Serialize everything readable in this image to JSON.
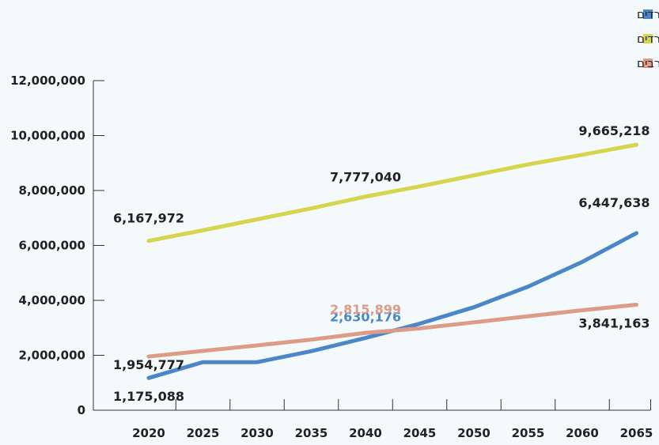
{
  "chart_data": {
    "type": "line",
    "categories": [
      "2020",
      "2025",
      "2030",
      "2035",
      "2040",
      "2045",
      "2050",
      "2055",
      "2060",
      "2065"
    ],
    "ylim": [
      0,
      12000000
    ],
    "y_ticks": [
      {
        "value": 0,
        "label": "0"
      },
      {
        "value": 2000000,
        "label": "2,000,000"
      },
      {
        "value": 4000000,
        "label": "4,000,000"
      },
      {
        "value": 6000000,
        "label": "6,000,000"
      },
      {
        "value": 8000000,
        "label": "8,000,000"
      },
      {
        "value": 10000000,
        "label": "10,000,000"
      },
      {
        "value": 12000000,
        "label": "12,000,000"
      }
    ],
    "grid": false,
    "legend_position": "top-right",
    "series": [
      {
        "name": "חרדים",
        "color": "#4a86c8",
        "values": [
          1175088,
          1750000,
          1750000,
          2150000,
          2630176,
          3150000,
          3750000,
          4500000,
          5400000,
          6447638
        ],
        "labels": [
          {
            "index": 0,
            "text": "1,175,088",
            "color": "#222222"
          },
          {
            "index": 4,
            "text": "2,630,176",
            "color": "#4a86c8"
          },
          {
            "index": 9,
            "text": "6,447,638",
            "color": "#222222"
          }
        ]
      },
      {
        "name": "יהודים לא־חרדים",
        "color": "#d5d64e",
        "values": [
          6167972,
          6550000,
          6950000,
          7350000,
          7777040,
          8150000,
          8550000,
          8950000,
          9300000,
          9665218
        ],
        "labels": [
          {
            "index": 0,
            "text": "6,167,972",
            "color": "#222222"
          },
          {
            "index": 4,
            "text": "7,777,040",
            "color": "#222222"
          },
          {
            "index": 9,
            "text": "9,665,218",
            "color": "#222222"
          }
        ]
      },
      {
        "name": "ערבים",
        "color": "#dc9c88",
        "values": [
          1954777,
          2160000,
          2360000,
          2570000,
          2815899,
          2980000,
          3200000,
          3420000,
          3640000,
          3841163
        ],
        "labels": [
          {
            "index": 0,
            "text": "1,954,777",
            "color": "#222222"
          },
          {
            "index": 4,
            "text": "2,815,899",
            "color": "#dc9c88"
          },
          {
            "index": 9,
            "text": "3,841,163",
            "color": "#222222"
          }
        ]
      }
    ]
  }
}
